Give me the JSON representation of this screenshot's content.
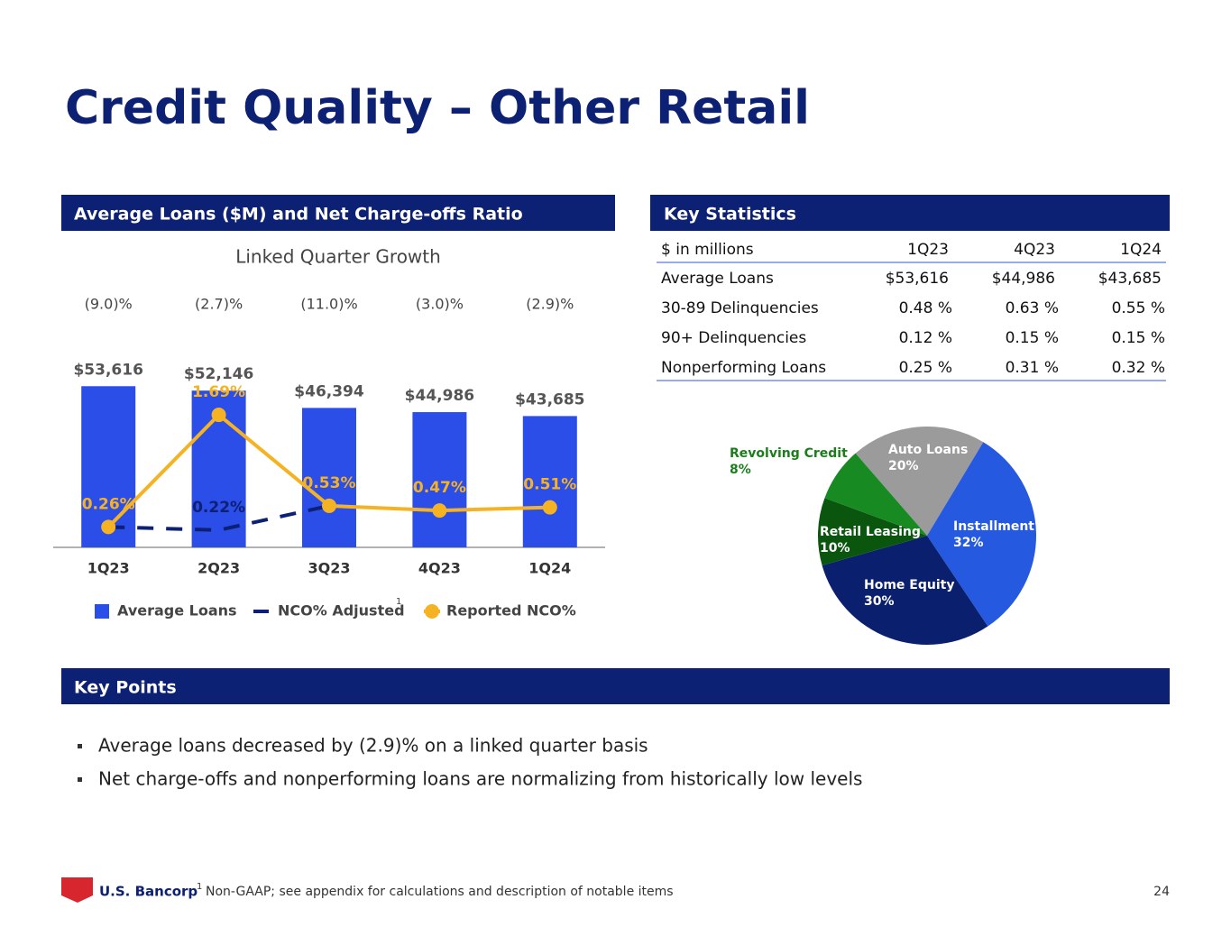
{
  "title": "Credit Quality – Other Retail",
  "left_header": "Average Loans ($M) and Net Charge-offs Ratio",
  "right_header": "Key Statistics",
  "points_header": "Key Points",
  "chart_data": [
    {
      "type": "bar",
      "subtitle": "Linked Quarter Growth",
      "growth_labels": [
        "(9.0)%",
        "(2.7)%",
        "(11.0)%",
        "(3.0)%",
        "(2.9)%"
      ],
      "categories": [
        "1Q23",
        "2Q23",
        "3Q23",
        "4Q23",
        "1Q24"
      ],
      "ylim": [
        0,
        60000
      ],
      "y2lim": [
        0,
        2.3
      ],
      "series": [
        {
          "name": "Average Loans",
          "color": "#2b4de8",
          "values": [
            53616,
            52146,
            46394,
            44986,
            43685
          ],
          "value_labels": [
            "$53,616",
            "$52,146",
            "$46,394",
            "$44,986",
            "$43,685"
          ]
        },
        {
          "name": "NCO% Adjusted",
          "color": "#0c2074",
          "axis": "y2",
          "dashed": true,
          "values": [
            0.26,
            0.22,
            0.53,
            null,
            null
          ],
          "value_labels": [
            null,
            "0.22%",
            null,
            null,
            null
          ]
        },
        {
          "name": "Reported NCO%",
          "color": "#f5b324",
          "axis": "y2",
          "values": [
            0.26,
            1.69,
            0.53,
            0.47,
            0.51
          ],
          "value_labels": [
            "0.26%",
            "1.69%",
            "0.53%",
            "0.47%",
            "0.51%"
          ]
        }
      ],
      "footnote_marker": "1"
    },
    {
      "type": "pie",
      "categories": [
        "Auto Loans",
        "Installment",
        "Home Equity",
        "Retail Leasing",
        "Revolving Credit"
      ],
      "values": [
        20,
        32,
        30,
        10,
        8
      ],
      "value_labels": [
        "20%",
        "32%",
        "30%",
        "10%",
        "8%"
      ],
      "colors": [
        "#9b9b9b",
        "#2459e0",
        "#0a1f6e",
        "#0b560f",
        "#178a22"
      ]
    }
  ],
  "table": {
    "header": [
      "$ in millions",
      "1Q23",
      "4Q23",
      "1Q24"
    ],
    "rows": [
      [
        "Average Loans",
        "$53,616",
        "$44,986",
        "$43,685"
      ],
      [
        "30-89 Delinquencies",
        "0.48 %",
        "0.63 %",
        "0.55 %"
      ],
      [
        "90+ Delinquencies",
        "0.12 %",
        "0.15 %",
        "0.15 %"
      ],
      [
        "Nonperforming Loans",
        "0.25 %",
        "0.31 %",
        "0.32 %"
      ]
    ]
  },
  "key_points": [
    "Average loans decreased by (2.9)% on a linked quarter basis",
    "Net charge-offs and nonperforming loans are normalizing from historically low levels"
  ],
  "footnote": {
    "marker": "1",
    "text": "Non-GAAP; see appendix for calculations and description of notable items"
  },
  "logo": "U.S. Bancorp",
  "page_number": "24"
}
